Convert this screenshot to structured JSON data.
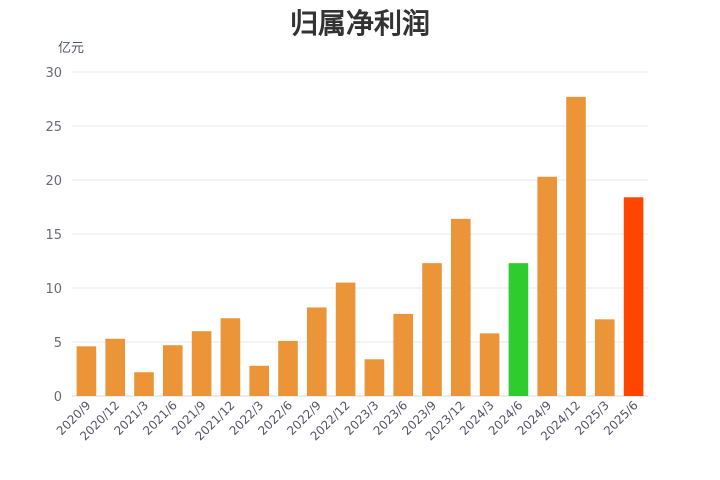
{
  "chart_data": {
    "type": "bar",
    "title": "归属净利润",
    "unit": "亿元",
    "categories": [
      "2020/9",
      "2020/12",
      "2021/3",
      "2021/6",
      "2021/9",
      "2021/12",
      "2022/3",
      "2022/6",
      "2022/9",
      "2022/12",
      "2023/3",
      "2023/6",
      "2023/9",
      "2023/12",
      "2024/3",
      "2024/6",
      "2024/9",
      "2024/12",
      "2025/3",
      "2025/6"
    ],
    "values": [
      4.6,
      5.3,
      2.2,
      4.7,
      6.0,
      7.2,
      2.8,
      5.1,
      8.2,
      10.5,
      3.4,
      7.6,
      12.3,
      16.4,
      5.8,
      12.3,
      20.3,
      27.7,
      7.1,
      18.4
    ],
    "colors": [
      "#ec9438",
      "#ec9438",
      "#ec9438",
      "#ec9438",
      "#ec9438",
      "#ec9438",
      "#ec9438",
      "#ec9438",
      "#ec9438",
      "#ec9438",
      "#ec9438",
      "#ec9438",
      "#ec9438",
      "#ec9438",
      "#ec9438",
      "#2ecc2e",
      "#ec9438",
      "#ec9438",
      "#ec9438",
      "#ff4500"
    ],
    "yticks": [
      0,
      5,
      10,
      15,
      20,
      25,
      30
    ],
    "ylim": [
      0,
      30
    ],
    "grid": true
  }
}
